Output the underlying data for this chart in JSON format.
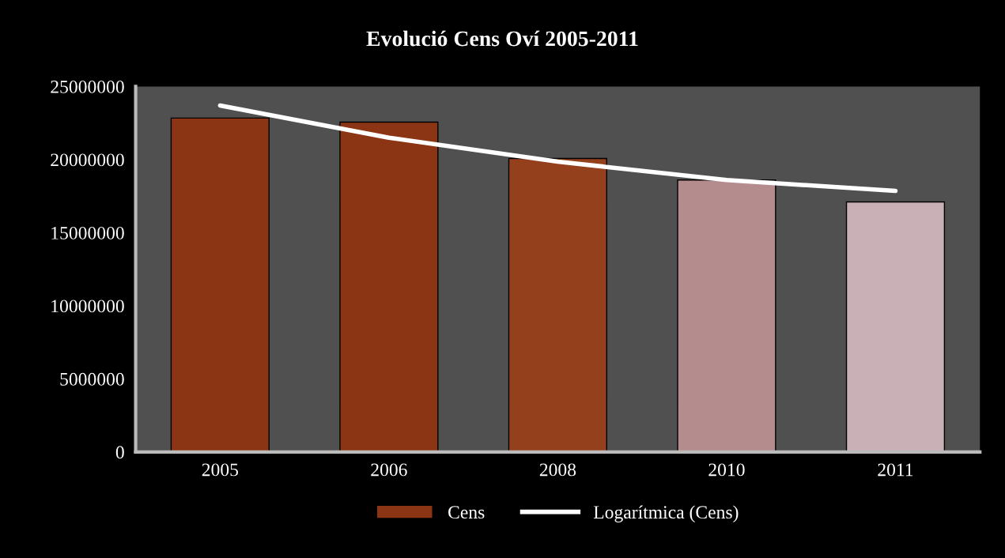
{
  "chart_data": {
    "type": "bar",
    "title": "Evolució Cens Oví 2005-2011",
    "categories": [
      "2005",
      "2006",
      "2008",
      "2010",
      "2011"
    ],
    "series": [
      {
        "name": "Cens",
        "color": "#8b3515",
        "colors": [
          "#8b3515",
          "#8b3515",
          "#94401c",
          "#b48c8e",
          "#c8b0b6"
        ],
        "values": [
          22840000,
          22560000,
          20080000,
          18600000,
          17100000
        ]
      },
      {
        "name": "Logarítmica (Cens)",
        "type": "line",
        "color": "#ffffff",
        "values": [
          23700000,
          21500000,
          19860000,
          18600000,
          17860000
        ]
      }
    ],
    "ylim": [
      0,
      25000000
    ],
    "yticks": [
      0,
      5000000,
      10000000,
      15000000,
      20000000,
      25000000
    ],
    "grid": false,
    "legend": "bottom"
  }
}
